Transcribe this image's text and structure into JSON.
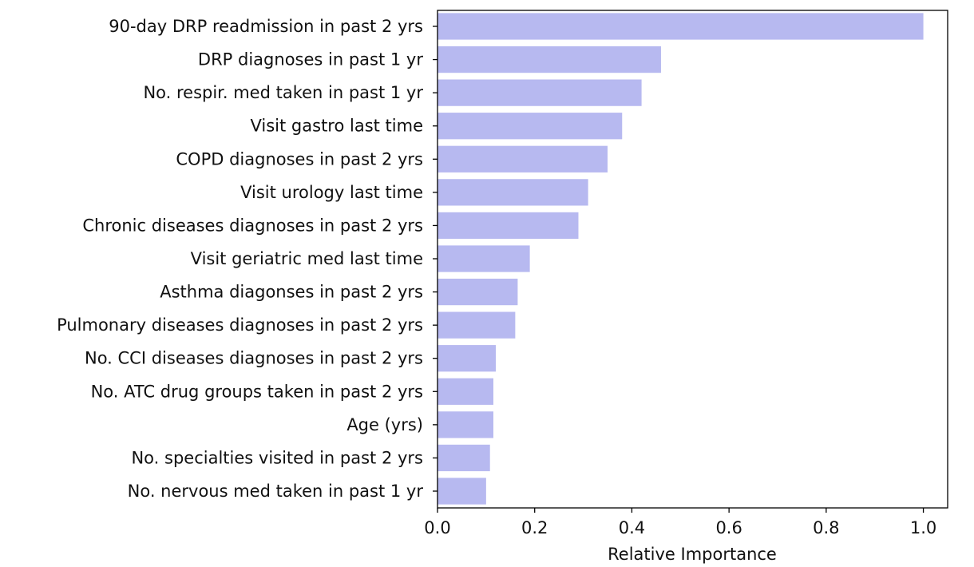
{
  "chart_data": {
    "type": "bar",
    "orientation": "horizontal",
    "categories": [
      "90-day DRP readmission in past 2 yrs",
      "DRP diagnoses in past 1 yr",
      "No. respir. med taken in past 1 yr",
      "Visit gastro last time",
      "COPD diagnoses in past 2 yrs",
      "Visit urology last time",
      "Chronic diseases diagnoses in past 2 yrs",
      "Visit geriatric med last time",
      "Asthma diagonses in past 2 yrs",
      "Pulmonary diseases diagnoses in past 2 yrs",
      "No. CCI diseases diagnoses in past 2 yrs",
      "No. ATC drug groups taken in past 2 yrs",
      "Age (yrs)",
      "No. specialties visited in past 2 yrs",
      "No. nervous med taken in past 1 yr"
    ],
    "values": [
      1.0,
      0.46,
      0.42,
      0.38,
      0.35,
      0.31,
      0.29,
      0.19,
      0.165,
      0.16,
      0.12,
      0.115,
      0.115,
      0.108,
      0.1
    ],
    "title": "",
    "xlabel": "Relative Importance",
    "ylabel": "",
    "xlim": [
      0,
      1.05
    ],
    "xticks": [
      "0.0",
      "0.2",
      "0.4",
      "0.6",
      "0.8",
      "1.0"
    ],
    "xtick_values": [
      0,
      0.2,
      0.4,
      0.6,
      0.8,
      1.0
    ],
    "bar_color": "#b7b9f0",
    "grid": false,
    "legend": "none"
  }
}
